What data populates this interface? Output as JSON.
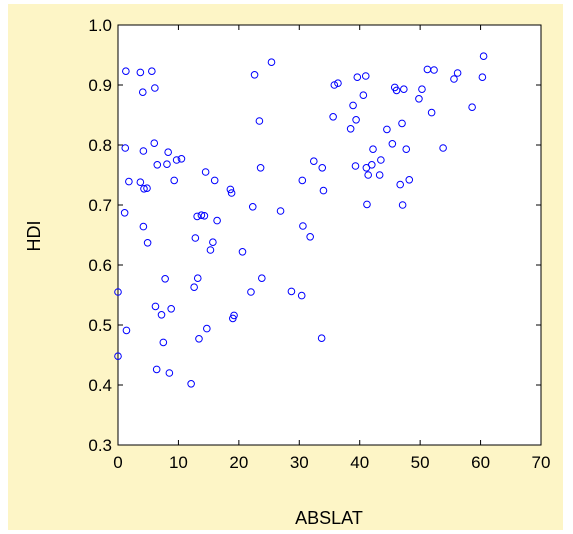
{
  "chart_data": {
    "type": "scatter",
    "xlabel": "ABSLAT",
    "ylabel": "HDI",
    "xlim": [
      0,
      70
    ],
    "ylim": [
      0.3,
      1.0
    ],
    "xticks": [
      0,
      10,
      20,
      30,
      40,
      50,
      60,
      70
    ],
    "yticks": [
      0.3,
      0.4,
      0.5,
      0.6,
      0.7,
      0.8,
      0.9,
      1.0
    ],
    "xtick_labels": [
      "0",
      "10",
      "20",
      "30",
      "40",
      "50",
      "60",
      "70"
    ],
    "ytick_labels": [
      "0.3",
      "0.4",
      "0.5",
      "0.6",
      "0.7",
      "0.8",
      "0.9",
      "1.0"
    ],
    "grid": false,
    "marker": "open-circle",
    "marker_color": "#0000ff",
    "background_color": "#fdf5c6",
    "series": [
      {
        "points": [
          [
            0.0,
            0.448
          ],
          [
            0.0,
            0.555
          ],
          [
            1.1,
            0.687
          ],
          [
            1.2,
            0.795
          ],
          [
            1.3,
            0.923
          ],
          [
            1.4,
            0.491
          ],
          [
            1.8,
            0.739
          ],
          [
            3.7,
            0.921
          ],
          [
            3.7,
            0.738
          ],
          [
            4.1,
            0.888
          ],
          [
            4.2,
            0.79
          ],
          [
            4.2,
            0.664
          ],
          [
            4.3,
            0.727
          ],
          [
            4.8,
            0.728
          ],
          [
            4.9,
            0.637
          ],
          [
            5.6,
            0.923
          ],
          [
            6.0,
            0.803
          ],
          [
            6.1,
            0.895
          ],
          [
            6.2,
            0.531
          ],
          [
            6.4,
            0.426
          ],
          [
            6.5,
            0.767
          ],
          [
            7.2,
            0.517
          ],
          [
            7.5,
            0.471
          ],
          [
            7.8,
            0.577
          ],
          [
            8.1,
            0.768
          ],
          [
            8.3,
            0.788
          ],
          [
            8.5,
            0.42
          ],
          [
            8.8,
            0.527
          ],
          [
            9.3,
            0.741
          ],
          [
            9.7,
            0.775
          ],
          [
            10.5,
            0.777
          ],
          [
            12.1,
            0.402
          ],
          [
            12.6,
            0.563
          ],
          [
            12.8,
            0.645
          ],
          [
            13.1,
            0.681
          ],
          [
            13.2,
            0.578
          ],
          [
            13.4,
            0.477
          ],
          [
            13.8,
            0.683
          ],
          [
            14.3,
            0.682
          ],
          [
            14.5,
            0.755
          ],
          [
            14.7,
            0.494
          ],
          [
            15.3,
            0.625
          ],
          [
            15.7,
            0.638
          ],
          [
            16.0,
            0.741
          ],
          [
            16.4,
            0.674
          ],
          [
            18.6,
            0.726
          ],
          [
            18.8,
            0.72
          ],
          [
            19.0,
            0.511
          ],
          [
            19.2,
            0.516
          ],
          [
            20.6,
            0.622
          ],
          [
            22.0,
            0.555
          ],
          [
            22.3,
            0.697
          ],
          [
            22.6,
            0.917
          ],
          [
            23.4,
            0.84
          ],
          [
            23.6,
            0.762
          ],
          [
            23.8,
            0.578
          ],
          [
            25.4,
            0.938
          ],
          [
            26.9,
            0.69
          ],
          [
            28.7,
            0.556
          ],
          [
            30.4,
            0.549
          ],
          [
            30.5,
            0.741
          ],
          [
            30.6,
            0.665
          ],
          [
            31.8,
            0.647
          ],
          [
            32.4,
            0.773
          ],
          [
            33.7,
            0.478
          ],
          [
            33.8,
            0.762
          ],
          [
            34.0,
            0.724
          ],
          [
            35.6,
            0.847
          ],
          [
            35.8,
            0.9
          ],
          [
            36.4,
            0.903
          ],
          [
            38.5,
            0.827
          ],
          [
            38.9,
            0.866
          ],
          [
            39.3,
            0.765
          ],
          [
            39.4,
            0.842
          ],
          [
            39.6,
            0.913
          ],
          [
            40.6,
            0.883
          ],
          [
            41.0,
            0.915
          ],
          [
            41.1,
            0.762
          ],
          [
            41.2,
            0.701
          ],
          [
            41.4,
            0.75
          ],
          [
            42.0,
            0.767
          ],
          [
            42.2,
            0.793
          ],
          [
            43.3,
            0.75
          ],
          [
            43.5,
            0.775
          ],
          [
            44.5,
            0.826
          ],
          [
            45.4,
            0.802
          ],
          [
            45.8,
            0.896
          ],
          [
            46.1,
            0.891
          ],
          [
            46.7,
            0.734
          ],
          [
            47.0,
            0.836
          ],
          [
            47.1,
            0.7
          ],
          [
            47.3,
            0.893
          ],
          [
            47.7,
            0.793
          ],
          [
            48.2,
            0.742
          ],
          [
            49.8,
            0.877
          ],
          [
            50.3,
            0.893
          ],
          [
            51.2,
            0.926
          ],
          [
            51.9,
            0.854
          ],
          [
            52.3,
            0.925
          ],
          [
            53.8,
            0.795
          ],
          [
            55.6,
            0.91
          ],
          [
            56.2,
            0.92
          ],
          [
            58.6,
            0.863
          ],
          [
            60.3,
            0.913
          ],
          [
            60.5,
            0.948
          ]
        ]
      }
    ]
  }
}
